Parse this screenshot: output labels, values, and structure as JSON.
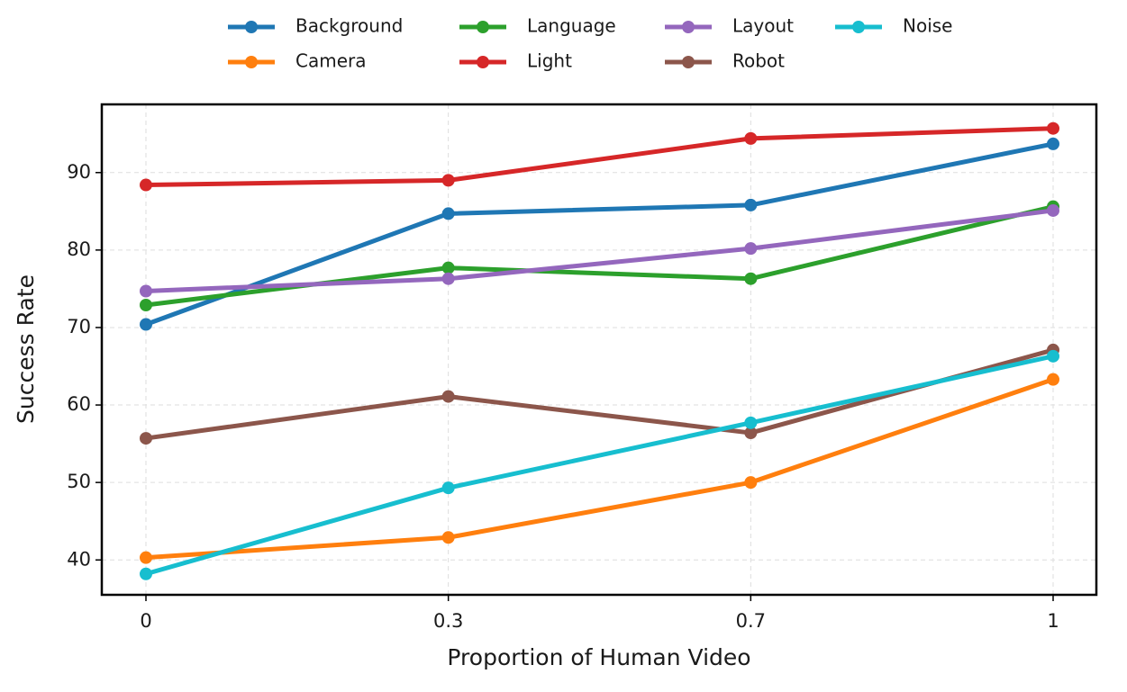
{
  "chart_data": {
    "type": "line",
    "x_label": "Proportion of Human Video",
    "y_label": "Success Rate",
    "categories": [
      "0",
      "0.3",
      "0.7",
      "1"
    ],
    "ylim": [
      35.5,
      98.8
    ],
    "yticks": [
      40,
      50,
      60,
      70,
      80,
      90
    ],
    "grid": true,
    "legend": "upper center outside",
    "series": [
      {
        "name": "Background",
        "color": "#1f77b4",
        "values": [
          70.4,
          84.7,
          85.8,
          93.7
        ]
      },
      {
        "name": "Camera",
        "color": "#ff7f0e",
        "values": [
          40.3,
          42.9,
          50.0,
          63.3
        ]
      },
      {
        "name": "Language",
        "color": "#2ca02c",
        "values": [
          72.9,
          77.7,
          76.3,
          85.6
        ]
      },
      {
        "name": "Light",
        "color": "#d62728",
        "values": [
          88.4,
          89.0,
          94.4,
          95.7
        ]
      },
      {
        "name": "Layout",
        "color": "#9467bd",
        "values": [
          74.7,
          76.3,
          80.2,
          85.1
        ]
      },
      {
        "name": "Robot",
        "color": "#8c564b",
        "values": [
          55.7,
          61.1,
          56.4,
          67.1
        ]
      },
      {
        "name": "Noise",
        "color": "#17becf",
        "values": [
          38.2,
          49.3,
          57.7,
          66.3
        ]
      }
    ]
  }
}
